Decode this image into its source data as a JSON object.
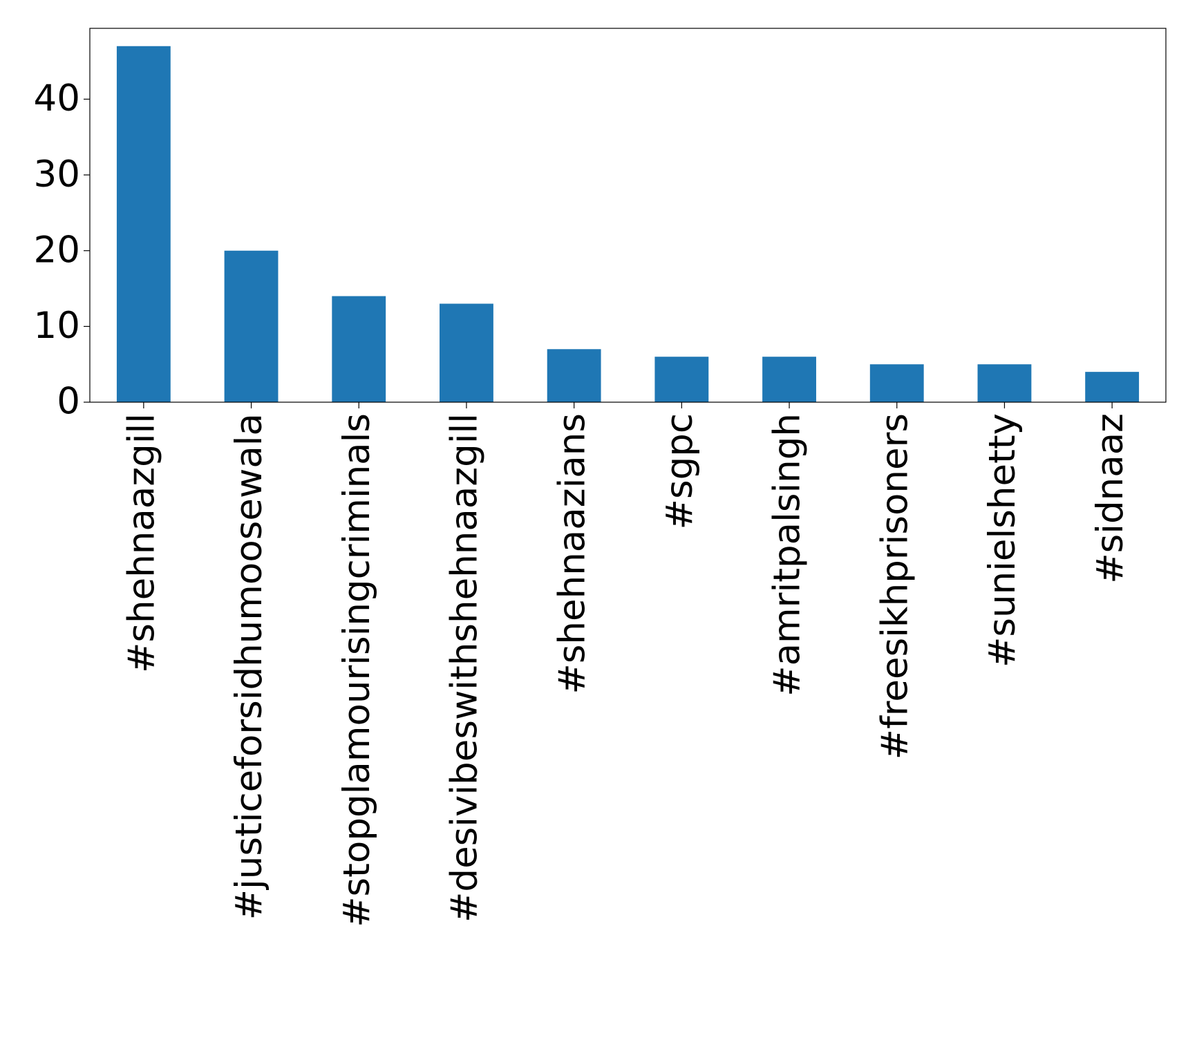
{
  "chart_data": {
    "type": "bar",
    "categories": [
      "#shehnaazgill",
      "#justiceforsidhumoosewala",
      "#stopglamourisingcriminals",
      "#desivibeswithshehnaazgill",
      "#shehnaazians",
      "#sgpc",
      "#amritpalsingh",
      "#freesikhprisoners",
      "#sunielshetty",
      "#sidnaaz"
    ],
    "values": [
      47,
      20,
      14,
      13,
      7,
      6,
      6,
      5,
      5,
      4
    ],
    "color": "#1f77b4",
    "ylim": [
      0,
      49.35
    ],
    "yticks": [
      0,
      10,
      20,
      30,
      40
    ],
    "grid": false
  }
}
